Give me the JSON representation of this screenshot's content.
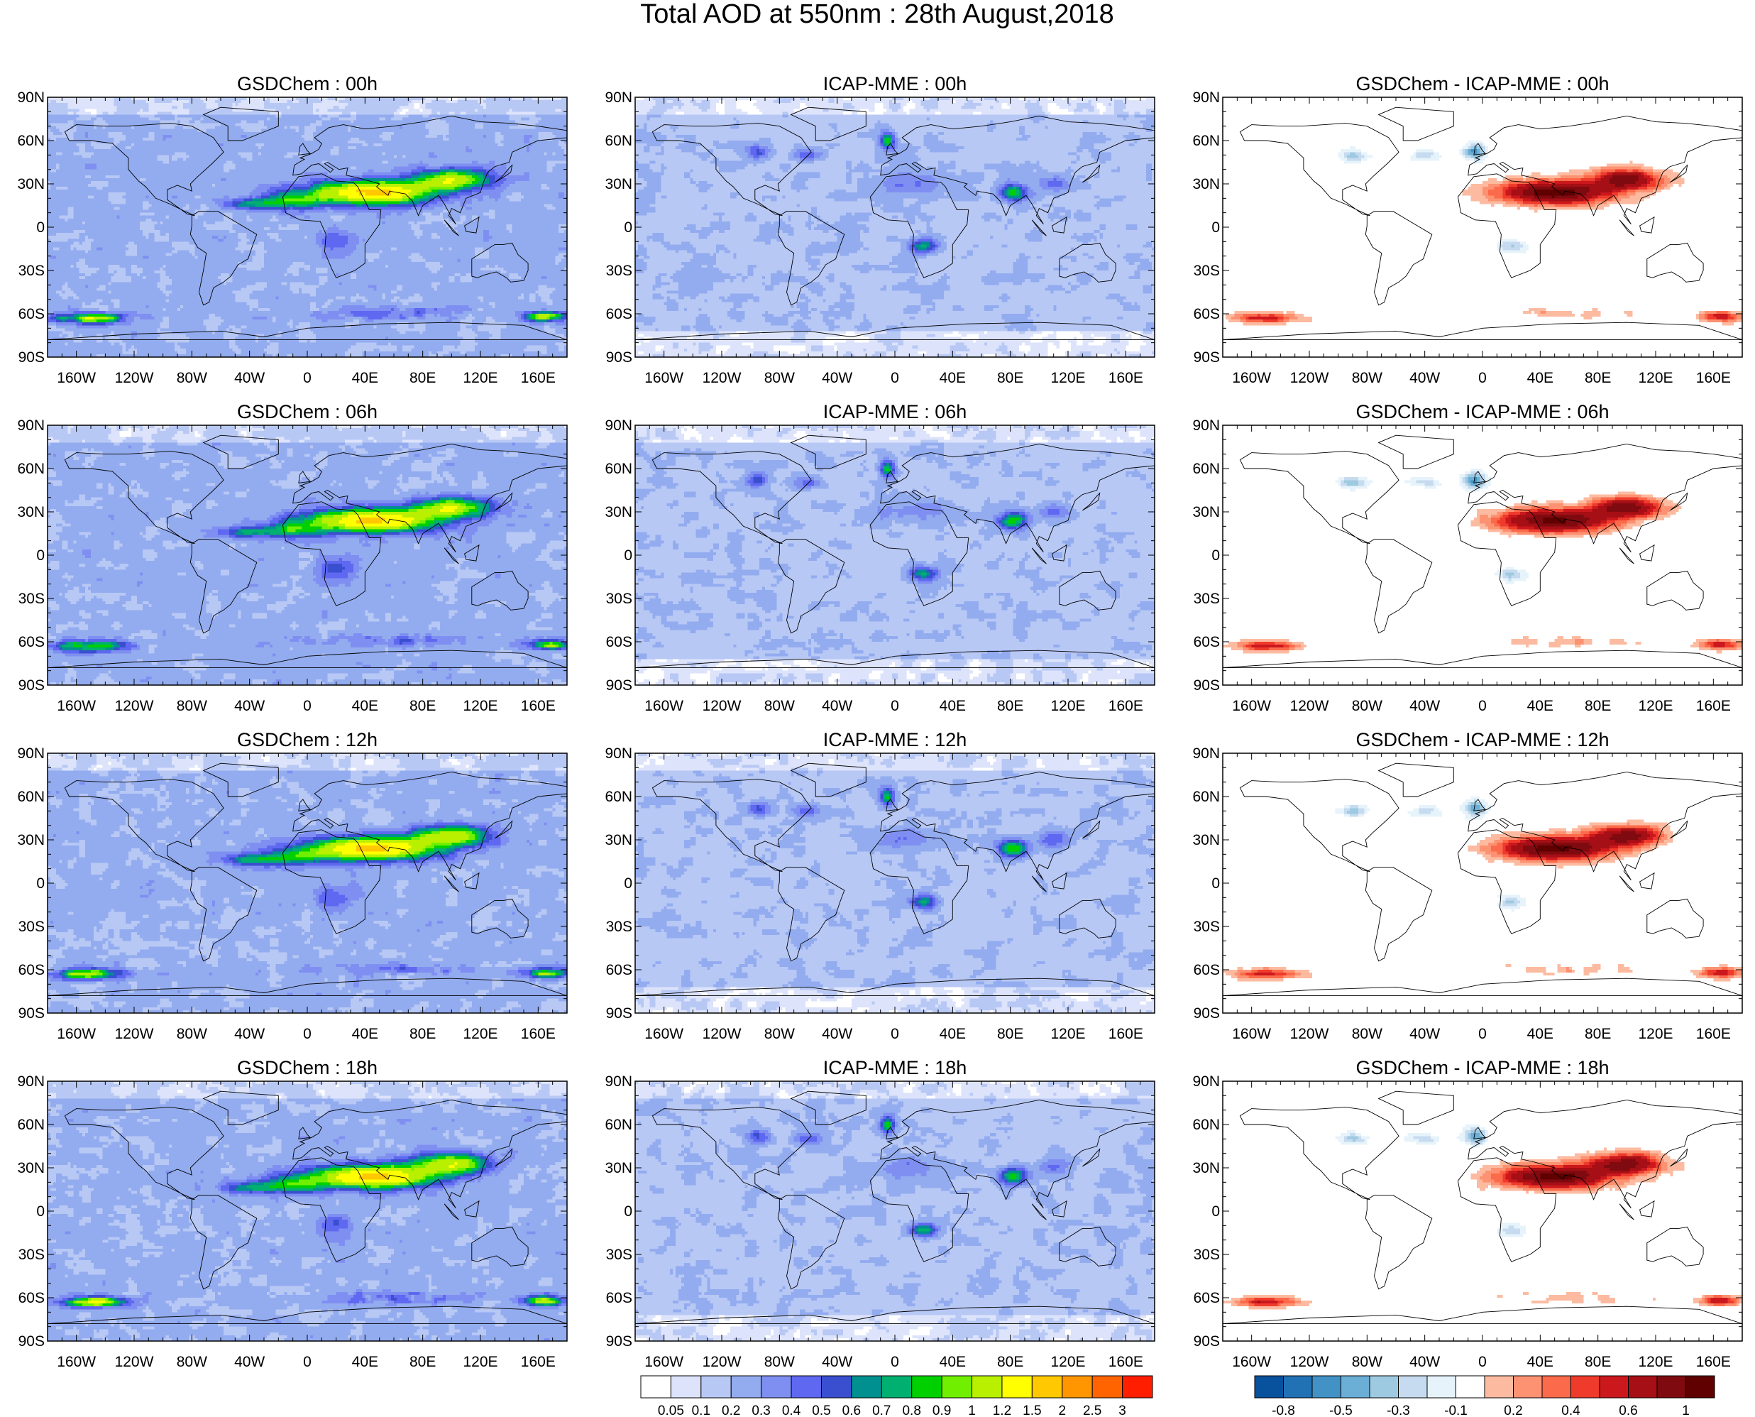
{
  "title": "Total AOD at 550nm : 28th August,2018",
  "panels": [
    {
      "title": "GSDChem : 00h",
      "field": "gsd"
    },
    {
      "title": "ICAP-MME : 00h",
      "field": "icap"
    },
    {
      "title": "GSDChem - ICAP-MME : 00h",
      "field": "diff"
    },
    {
      "title": "GSDChem : 06h",
      "field": "gsd"
    },
    {
      "title": "ICAP-MME : 06h",
      "field": "icap"
    },
    {
      "title": "GSDChem - ICAP-MME : 06h",
      "field": "diff"
    },
    {
      "title": "GSDChem : 12h",
      "field": "gsd"
    },
    {
      "title": "ICAP-MME : 12h",
      "field": "icap"
    },
    {
      "title": "GSDChem - ICAP-MME : 12h",
      "field": "diff"
    },
    {
      "title": "GSDChem : 18h",
      "field": "gsd"
    },
    {
      "title": "ICAP-MME : 18h",
      "field": "icap"
    },
    {
      "title": "GSDChem - ICAP-MME : 18h",
      "field": "diff"
    }
  ],
  "lat_ticks": [
    "90N",
    "60N",
    "30N",
    "0",
    "30S",
    "60S",
    "90S"
  ],
  "lon_ticks": [
    "160W",
    "120W",
    "80W",
    "40W",
    "0",
    "40E",
    "80E",
    "120E",
    "160E"
  ],
  "aod_colorbar": {
    "labels": [
      "0.05",
      "0.1",
      "0.2",
      "0.3",
      "0.4",
      "0.5",
      "0.6",
      "0.7",
      "0.8",
      "0.9",
      "1",
      "1.2",
      "1.5",
      "2",
      "2.5",
      "3"
    ],
    "colors": [
      "#ffffff",
      "#dce3fb",
      "#b8c8f5",
      "#93acef",
      "#7f8ff1",
      "#5f68f0",
      "#3a4fd0",
      "#009090",
      "#00b070",
      "#00d000",
      "#70f000",
      "#b8f000",
      "#ffff00",
      "#ffc800",
      "#ff9600",
      "#ff6400",
      "#ff1e00"
    ]
  },
  "diff_colorbar": {
    "labels": [
      "-0.8",
      "-0.5",
      "-0.3",
      "-0.1",
      "0.2",
      "0.4",
      "0.6",
      "1"
    ],
    "colors": [
      "#08519c",
      "#2171b5",
      "#4292c6",
      "#6baed6",
      "#9ecae1",
      "#c6dbef",
      "#e6f3fb",
      "#ffffff",
      "#fcbba1",
      "#fc9272",
      "#fb6a4a",
      "#ef3b2c",
      "#cb181d",
      "#a50f15",
      "#7f0a0f",
      "#600000"
    ]
  }
}
